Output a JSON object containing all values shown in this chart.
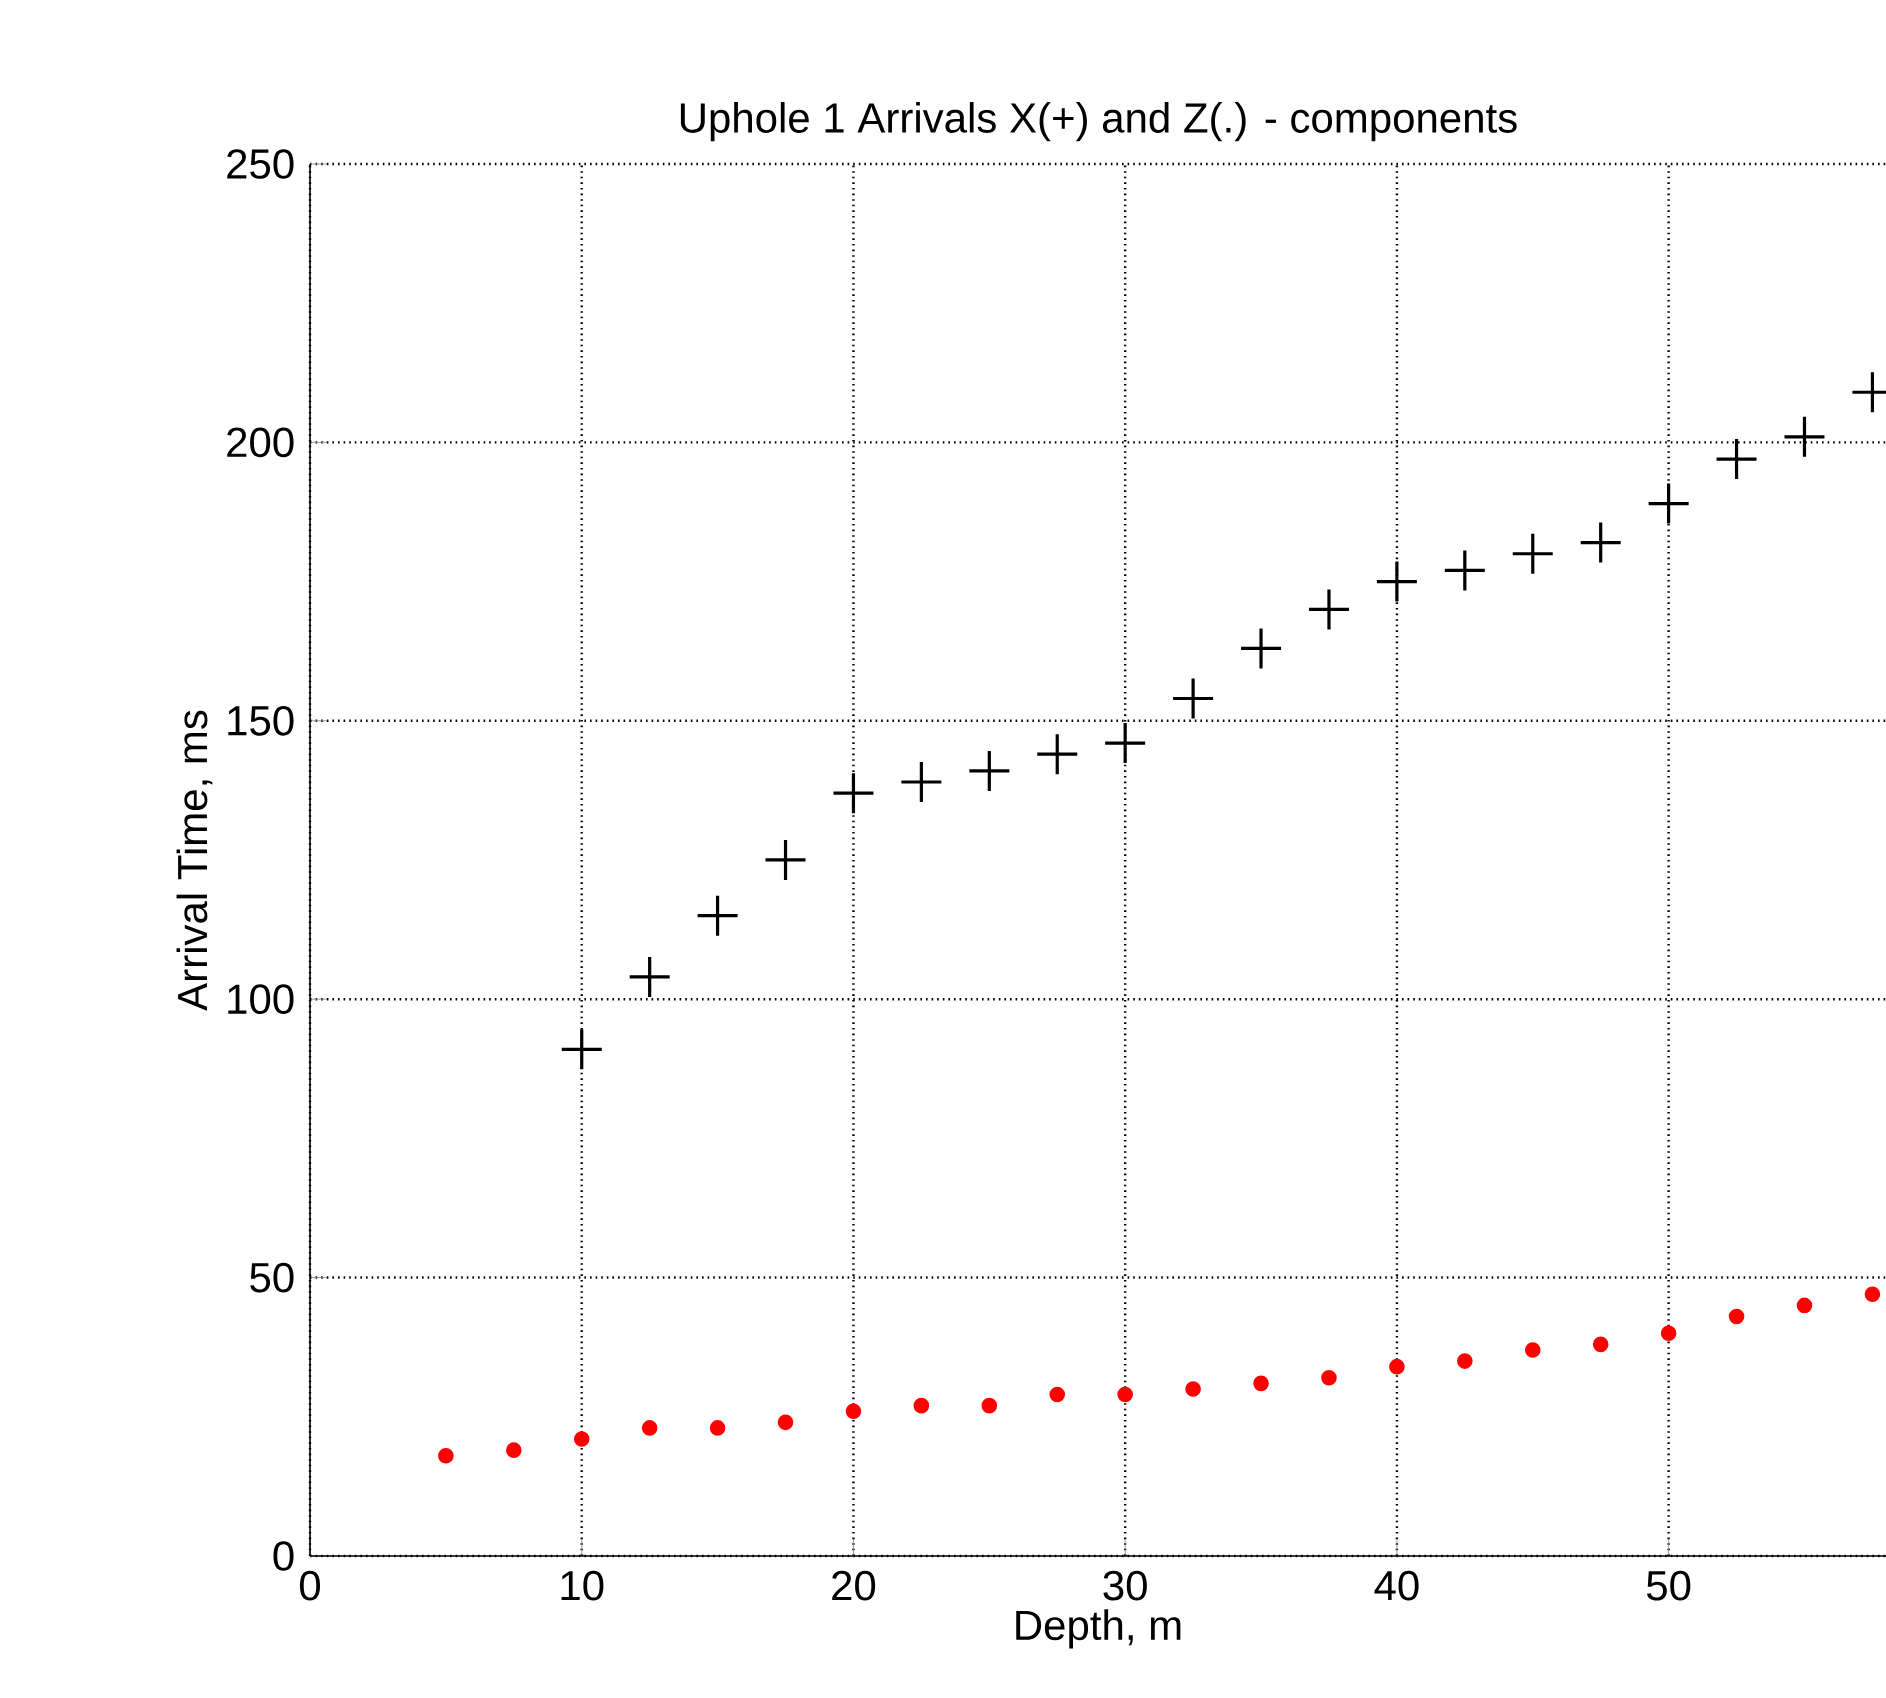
{
  "chart_data": {
    "type": "scatter",
    "title": "Uphole 1 Arrivals X(+) and Z(.) - components",
    "xlabel": "Depth, m",
    "ylabel": "Arrival Time, ms",
    "xlim": [
      0,
      58
    ],
    "xticks": [
      0,
      10,
      20,
      30,
      40,
      50
    ],
    "ylim": [
      0,
      250
    ],
    "yticks": [
      0,
      50,
      100,
      150,
      200,
      250
    ],
    "grid": true,
    "series": [
      {
        "color": "#000000",
        "marker": "cross",
        "x": [
          10,
          12.5,
          15,
          17.5,
          20,
          22.5,
          25,
          27.5,
          30,
          32.5,
          35,
          37.5,
          40,
          42.5,
          45,
          47.5,
          50,
          52.5,
          55,
          57.5
        ],
        "values": [
          91,
          104,
          115,
          125,
          137,
          139,
          141,
          144,
          146,
          154,
          163,
          170,
          175,
          177,
          180,
          182,
          189,
          197,
          201,
          209
        ]
      },
      {
        "color": "#ff0000",
        "marker": "circle",
        "x": [
          5,
          7.5,
          10,
          12.5,
          15,
          17.5,
          20,
          22.5,
          25,
          27.5,
          30,
          32.5,
          35,
          37.5,
          40,
          42.5,
          45,
          47.5,
          50,
          52.5,
          55,
          57.5
        ],
        "values": [
          18,
          19,
          21,
          23,
          23,
          24,
          26,
          27,
          27,
          29,
          29,
          30,
          31,
          32,
          34,
          35,
          37,
          38,
          40,
          43,
          45,
          47
        ]
      }
    ]
  }
}
